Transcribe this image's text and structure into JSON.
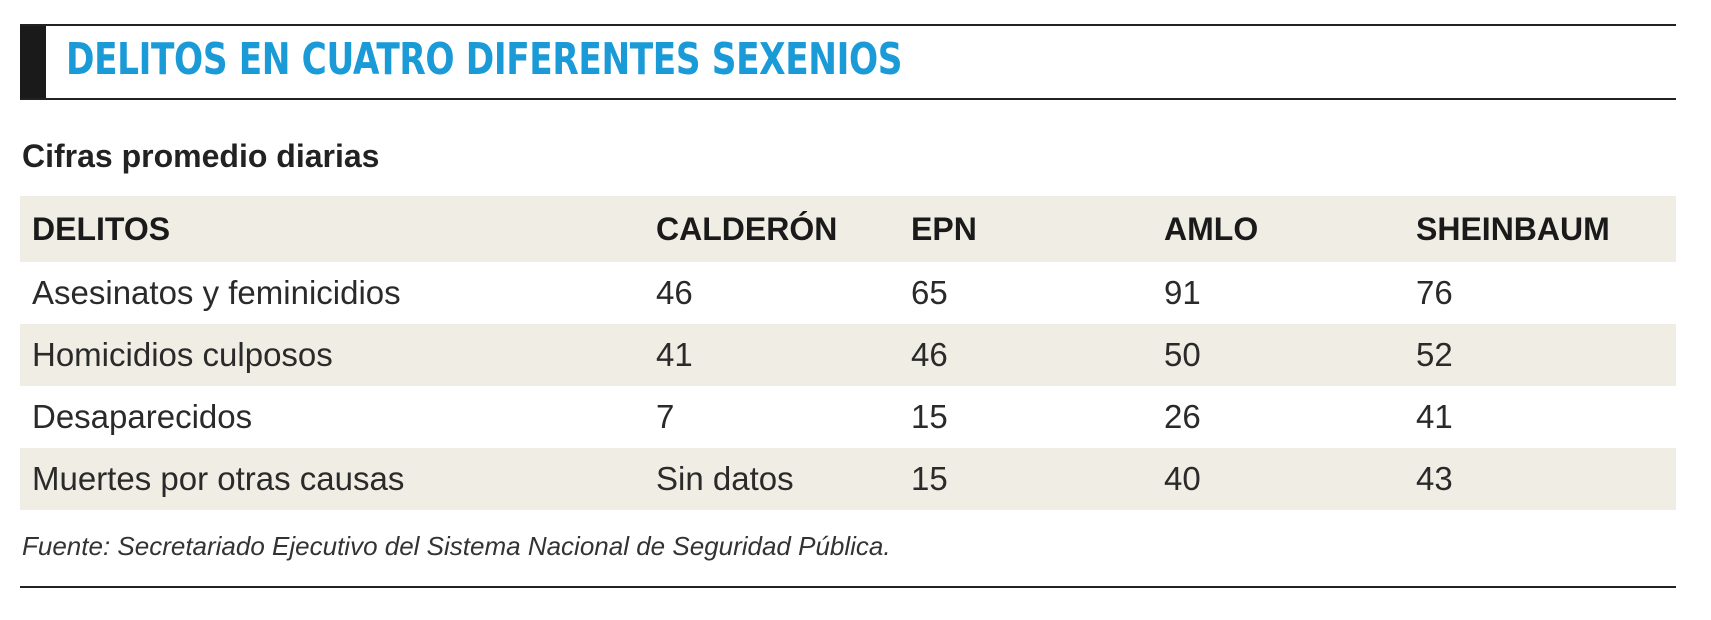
{
  "header": {
    "title": "DELITOS EN CUATRO DIFERENTES SEXENIOS",
    "accent_color": "#1a9ad6"
  },
  "subtitle": "Cifras promedio diarias",
  "table": {
    "columns": [
      "DELITOS",
      "CALDERÓN",
      "EPN",
      "AMLO",
      "SHEINBAUM"
    ],
    "rows": [
      [
        "Asesinatos y feminicidios",
        "46",
        "65",
        "91",
        "76"
      ],
      [
        "Homicidios culposos",
        "41",
        "46",
        "50",
        "52"
      ],
      [
        "Desaparecidos",
        "7",
        "15",
        "26",
        "41"
      ],
      [
        "Muertes por otras causas",
        "Sin datos",
        "15",
        "40",
        "43"
      ]
    ]
  },
  "source": "Fuente: Secretariado Ejecutivo del Sistema Nacional de Seguridad Pública."
}
